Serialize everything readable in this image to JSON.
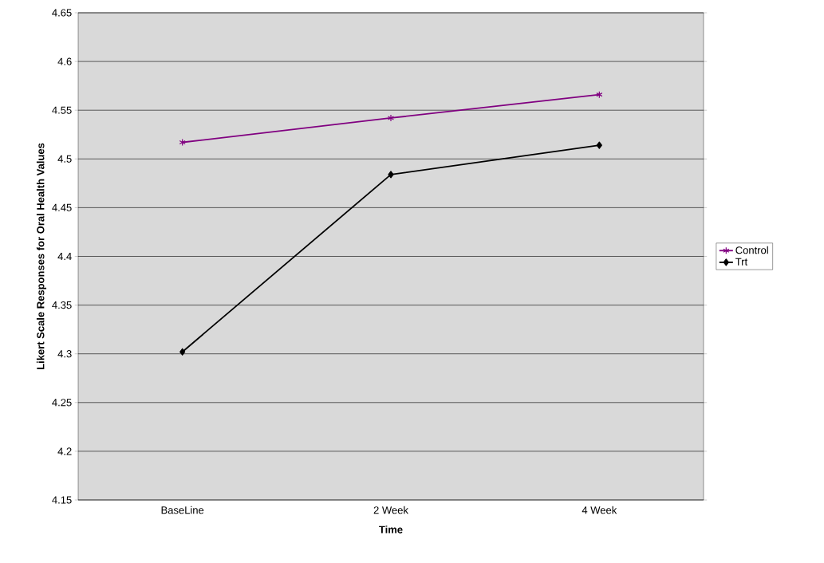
{
  "chart_data": {
    "type": "line",
    "xlabel": "Time",
    "ylabel": "Likert Scale Responses for Oral Health Values",
    "categories": [
      "BaseLine",
      "2 Week",
      "4 Week"
    ],
    "series": [
      {
        "name": "Control",
        "color": "#800080",
        "marker": "cross",
        "values": [
          4.517,
          4.542,
          4.566
        ]
      },
      {
        "name": "Trt",
        "color": "#000000",
        "marker": "diamond",
        "values": [
          4.302,
          4.484,
          4.514
        ]
      }
    ],
    "ylim": [
      4.15,
      4.65
    ],
    "yticks": [
      4.15,
      4.2,
      4.25,
      4.3,
      4.35,
      4.4,
      4.45,
      4.5,
      4.55,
      4.6,
      4.65
    ],
    "grid": "y",
    "legend": "right",
    "line_style": "solid"
  }
}
